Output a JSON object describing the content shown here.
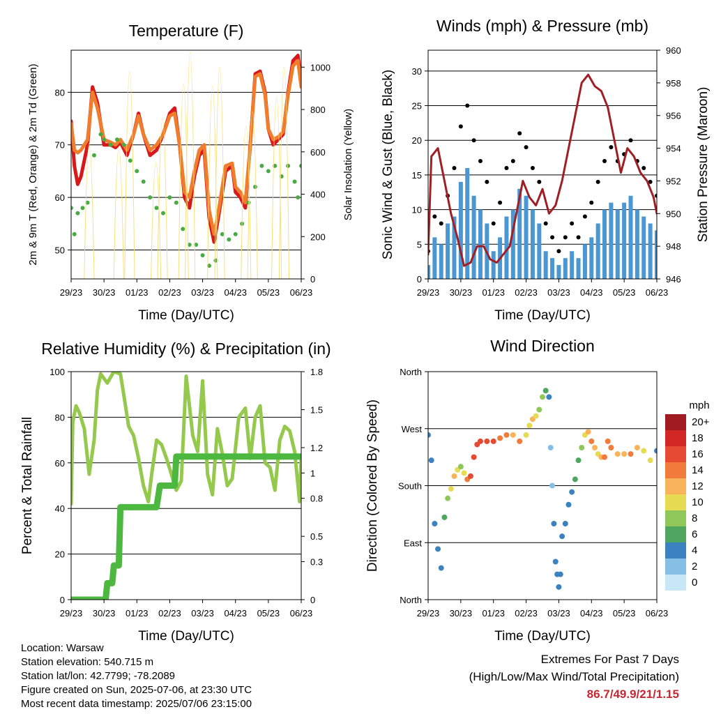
{
  "chart_data": [
    {
      "id": "temperature",
      "type": "line",
      "title": "Temperature (F)",
      "xlabel": "Time (Day/UTC)",
      "ylabel_left": "2m & 9m T (Red, Orange) & 2m Td (Green)",
      "ylabel_right": "Solar Insolation (Yellow)",
      "x_ticks": [
        "29/23",
        "30/23",
        "01/23",
        "02/23",
        "03/23",
        "04/23",
        "05/23",
        "06/23"
      ],
      "xlim": [
        0,
        7
      ],
      "ylim_left": [
        44.5,
        88
      ],
      "yticks_left": [
        50,
        60,
        70,
        80
      ],
      "ylim_right": [
        0,
        1080
      ],
      "yticks_right": [
        0,
        200,
        400,
        600,
        800,
        1000
      ],
      "series": [
        {
          "name": "2m T",
          "color": "#d7191c",
          "axis": "left",
          "kind": "line",
          "x": [
            0,
            0.1,
            0.2,
            0.3,
            0.5,
            0.65,
            0.8,
            1,
            1.2,
            1.35,
            1.5,
            1.7,
            1.9,
            2.05,
            2.2,
            2.4,
            2.6,
            2.8,
            3,
            3.15,
            3.3,
            3.45,
            3.6,
            3.75,
            3.9,
            4.05,
            4.2,
            4.35,
            4.5,
            4.7,
            4.9,
            5,
            5.15,
            5.3,
            5.45,
            5.6,
            5.75,
            5.9,
            6,
            6.15,
            6.3,
            6.45,
            6.6,
            6.75,
            6.9,
            7
          ],
          "y": [
            74.5,
            66,
            62.5,
            64,
            70,
            81,
            78,
            70,
            70,
            69.5,
            70.5,
            68,
            72,
            76,
            72,
            68,
            69,
            72,
            76,
            77,
            70,
            60,
            58,
            64,
            68,
            69,
            56,
            51.5,
            57,
            65,
            66,
            61,
            60,
            58,
            70,
            83.5,
            84,
            80,
            73,
            70,
            71,
            72,
            80,
            86,
            87,
            82
          ]
        },
        {
          "name": "9m T",
          "color": "#f07d2c",
          "axis": "left",
          "kind": "line",
          "x": [
            0,
            0.1,
            0.2,
            0.3,
            0.5,
            0.65,
            0.8,
            1,
            1.2,
            1.35,
            1.5,
            1.7,
            1.9,
            2.05,
            2.2,
            2.4,
            2.6,
            2.8,
            3,
            3.15,
            3.3,
            3.45,
            3.6,
            3.75,
            3.9,
            4.05,
            4.2,
            4.35,
            4.5,
            4.7,
            4.9,
            5,
            5.15,
            5.3,
            5.45,
            5.6,
            5.75,
            5.9,
            6,
            6.15,
            6.3,
            6.45,
            6.6,
            6.75,
            6.9,
            7
          ],
          "y": [
            74,
            69,
            68.5,
            69,
            71,
            80,
            77,
            71,
            70.5,
            70,
            71,
            69,
            72,
            75.5,
            72,
            69,
            70,
            72,
            75.5,
            76,
            70,
            61,
            60,
            65,
            69,
            70,
            57.5,
            53,
            58,
            66,
            66.5,
            62,
            61,
            59,
            70,
            83,
            83.5,
            79.5,
            73,
            71,
            71.5,
            72.5,
            79.5,
            85,
            86,
            81
          ]
        },
        {
          "name": "2m Td",
          "color": "#4aab45",
          "axis": "left",
          "kind": "dots",
          "x": [
            0,
            0.1,
            0.2,
            0.35,
            0.5,
            0.7,
            0.9,
            1,
            1.2,
            1.4,
            1.6,
            1.8,
            2,
            2.2,
            2.4,
            2.6,
            2.8,
            3,
            3.2,
            3.4,
            3.6,
            3.8,
            4,
            4.2,
            4.4,
            4.6,
            4.8,
            5,
            5.2,
            5.4,
            5.6,
            5.8,
            6,
            6.2,
            6.4,
            6.6,
            6.8,
            6.9,
            7
          ],
          "y": [
            58,
            53,
            57,
            58,
            59,
            68,
            72,
            71,
            70,
            71,
            70,
            67,
            65,
            63,
            60,
            58,
            57,
            60,
            59,
            54,
            51,
            51,
            49,
            47,
            48,
            53,
            52,
            53,
            55,
            59,
            62,
            66,
            65,
            66,
            64,
            66,
            63,
            60,
            66
          ]
        },
        {
          "name": "Solar Insolation",
          "color": "#f5e07a",
          "axis": "right",
          "kind": "spikes",
          "x": [
            0.55,
            1.45,
            1.78,
            2.58,
            2.78,
            3.42,
            3.62,
            4.3,
            4.52,
            5.32,
            5.52,
            6.25,
            6.48
          ],
          "y": [
            640,
            620,
            980,
            550,
            760,
            920,
            1070,
            910,
            1000,
            720,
            790,
            860,
            1000
          ]
        }
      ]
    },
    {
      "id": "winds",
      "type": "scatter",
      "title": "Winds (mph) & Pressure (mb)",
      "xlabel": "Time (Day/UTC)",
      "ylabel_left": "Sonic Wind & Gust (Blue, Black)",
      "ylabel_right": "Station Pressure (Maroon)",
      "x_ticks": [
        "29/23",
        "30/23",
        "01/23",
        "02/23",
        "03/23",
        "04/23",
        "05/23",
        "06/23"
      ],
      "xlim": [
        0,
        7
      ],
      "ylim_left": [
        0,
        33
      ],
      "yticks_left": [
        0,
        5,
        10,
        15,
        20,
        25,
        30
      ],
      "ylim_right": [
        946,
        960
      ],
      "yticks_right": [
        946,
        948,
        950,
        952,
        954,
        956,
        958,
        960
      ],
      "series": [
        {
          "name": "Sonic Wind",
          "color": "#4b97d3",
          "axis": "left",
          "kind": "bars",
          "x": [
            0,
            0.2,
            0.4,
            0.6,
            0.8,
            1,
            1.2,
            1.4,
            1.6,
            1.8,
            2,
            2.2,
            2.4,
            2.6,
            2.8,
            3,
            3.2,
            3.4,
            3.6,
            3.8,
            4,
            4.2,
            4.4,
            4.6,
            4.8,
            5,
            5.2,
            5.4,
            5.6,
            5.8,
            6,
            6.2,
            6.4,
            6.6,
            6.8,
            7
          ],
          "y": [
            2,
            6,
            5,
            8,
            9,
            14,
            16,
            12,
            10,
            8,
            4,
            6,
            9,
            10,
            13,
            12,
            10,
            8,
            4,
            3,
            2,
            3,
            4,
            3,
            5,
            6,
            8,
            10,
            11,
            10,
            11,
            12,
            10,
            9,
            8,
            7
          ]
        },
        {
          "name": "Gust",
          "color": "#000000",
          "axis": "left",
          "kind": "dots",
          "x": [
            0,
            0.2,
            0.4,
            0.6,
            0.8,
            1,
            1.2,
            1.4,
            1.6,
            1.8,
            2,
            2.2,
            2.4,
            2.6,
            2.8,
            3,
            3.2,
            3.4,
            3.6,
            3.8,
            4,
            4.2,
            4.4,
            4.6,
            4.8,
            5,
            5.2,
            5.4,
            5.6,
            5.8,
            6,
            6.2,
            6.4,
            6.6,
            6.8,
            7
          ],
          "y": [
            4,
            9,
            8,
            12,
            16,
            22,
            25,
            20,
            17,
            14,
            8,
            11,
            16,
            17,
            21,
            19,
            16,
            14,
            8,
            6,
            4,
            6,
            8,
            6,
            9,
            11,
            14,
            17,
            19,
            17,
            18,
            20,
            17,
            16,
            14,
            12
          ]
        },
        {
          "name": "Station Pressure",
          "color": "#a01f24",
          "axis": "right",
          "kind": "line",
          "x": [
            0,
            0.1,
            0.3,
            0.5,
            0.7,
            0.9,
            1.1,
            1.3,
            1.5,
            1.7,
            1.9,
            2.1,
            2.3,
            2.5,
            2.7,
            2.9,
            3.1,
            3.3,
            3.5,
            3.7,
            3.9,
            4.1,
            4.3,
            4.5,
            4.7,
            4.9,
            5.1,
            5.3,
            5.5,
            5.7,
            5.9,
            6.1,
            6.3,
            6.5,
            6.7,
            6.9,
            7
          ],
          "y": [
            947.5,
            953.5,
            954,
            952,
            950,
            948.5,
            946.8,
            947,
            948,
            948,
            947.2,
            947,
            947.5,
            948,
            950,
            952,
            951,
            950.5,
            951.5,
            950,
            950.5,
            952,
            954,
            956,
            958,
            958.5,
            957.8,
            957.5,
            956.5,
            954.5,
            952.5,
            954,
            953.5,
            952.5,
            952,
            951,
            950
          ]
        }
      ]
    },
    {
      "id": "humidity",
      "type": "line",
      "title": "Relative Humidity (%) & Precipitation (in)",
      "xlabel": "Time (Day/UTC)",
      "ylabel_left": "Percent & Total Rainfall",
      "x_ticks": [
        "29/23",
        "30/23",
        "01/23",
        "02/23",
        "03/23",
        "04/23",
        "05/23",
        "06/23"
      ],
      "xlim": [
        0,
        7
      ],
      "ylim_left": [
        0,
        100
      ],
      "yticks_left": [
        0,
        20,
        40,
        60,
        80,
        100
      ],
      "ylim_right": [
        0,
        1.8
      ],
      "yticks_right": [
        0.0,
        0.3,
        0.5,
        0.8,
        1.0,
        1.2,
        1.5,
        1.8
      ],
      "series": [
        {
          "name": "Relative Humidity",
          "color": "#95c94e",
          "axis": "left",
          "kind": "line",
          "x": [
            0,
            0.05,
            0.15,
            0.25,
            0.4,
            0.55,
            0.7,
            0.8,
            0.9,
            1,
            1.1,
            1.3,
            1.5,
            1.6,
            1.75,
            1.9,
            2.05,
            2.2,
            2.35,
            2.45,
            2.6,
            2.75,
            2.9,
            3.05,
            3.2,
            3.35,
            3.5,
            3.7,
            3.85,
            4,
            4.15,
            4.3,
            4.45,
            4.6,
            4.75,
            4.9,
            5.1,
            5.3,
            5.45,
            5.6,
            5.75,
            5.9,
            6.05,
            6.2,
            6.35,
            6.5,
            6.65,
            6.8,
            6.95,
            7
          ],
          "y": [
            42,
            78,
            85,
            82,
            75,
            55,
            70,
            92,
            99,
            97,
            95,
            100,
            99,
            90,
            76,
            72,
            62,
            50,
            43,
            55,
            70,
            68,
            62,
            55,
            48,
            52,
            98,
            72,
            65,
            96,
            55,
            46,
            75,
            64,
            50,
            53,
            80,
            84,
            62,
            80,
            85,
            60,
            58,
            48,
            70,
            76,
            74,
            65,
            43,
            63
          ]
        },
        {
          "name": "Total Rainfall",
          "color": "#4cb83f",
          "axis": "right",
          "kind": "step",
          "x": [
            0,
            1.05,
            1.1,
            1.25,
            1.3,
            1.45,
            1.5,
            2.6,
            2.7,
            3.15,
            3.2,
            7
          ],
          "y": [
            0,
            0,
            0.13,
            0.13,
            0.27,
            0.27,
            0.73,
            0.73,
            0.9,
            0.9,
            1.13,
            1.13
          ]
        }
      ]
    },
    {
      "id": "wind_direction",
      "type": "scatter",
      "title": "Wind Direction",
      "xlabel": "Time (Day/UTC)",
      "ylabel_left": "Direction (Colored By Speed)",
      "x_ticks": [
        "29/23",
        "30/23",
        "01/23",
        "02/23",
        "03/23",
        "04/23",
        "05/23",
        "06/23"
      ],
      "xlim": [
        0,
        7
      ],
      "ylim_left": [
        0,
        360
      ],
      "yticks_left": [
        "North",
        "East",
        "South",
        "West",
        "North"
      ],
      "legend_title": "mph",
      "legend_labels": [
        "20+",
        "18",
        "16",
        "14",
        "12",
        "10",
        "8",
        "6",
        "4",
        "2",
        "0"
      ],
      "legend_colors": [
        "#a01a22",
        "#d12826",
        "#e64a33",
        "#f07b3a",
        "#f9b35a",
        "#e6dc54",
        "#8fc75a",
        "#4ea661",
        "#3b82c1",
        "#86bfe6",
        "#c7e7f7"
      ],
      "legend_placement": "right",
      "series": [
        {
          "name": "Direction",
          "kind": "dots",
          "x": [
            0,
            0.1,
            0.2,
            0.3,
            0.4,
            0.5,
            0.6,
            0.7,
            0.8,
            0.9,
            1,
            1.1,
            1.2,
            1.3,
            1.4,
            1.5,
            1.6,
            1.8,
            2,
            2.2,
            2.4,
            2.6,
            2.8,
            3,
            3.1,
            3.2,
            3.3,
            3.4,
            3.5,
            3.6,
            3.7,
            3.75,
            3.8,
            3.85,
            3.9,
            3.95,
            4,
            4.05,
            4.1,
            4.2,
            4.3,
            4.4,
            4.5,
            4.6,
            4.7,
            4.8,
            4.9,
            5,
            5.1,
            5.2,
            5.3,
            5.4,
            5.5,
            5.6,
            5.8,
            6,
            6.2,
            6.4,
            6.6,
            6.8,
            7
          ],
          "y": [
            260,
            220,
            120,
            80,
            50,
            130,
            160,
            175,
            195,
            205,
            210,
            200,
            190,
            195,
            225,
            245,
            250,
            250,
            250,
            255,
            260,
            260,
            250,
            260,
            275,
            285,
            290,
            300,
            320,
            330,
            320,
            240,
            180,
            120,
            60,
            40,
            20,
            40,
            100,
            120,
            150,
            170,
            190,
            220,
            240,
            260,
            265,
            250,
            240,
            230,
            225,
            225,
            250,
            240,
            230,
            230,
            230,
            240,
            235,
            220,
            235
          ],
          "speed": [
            3,
            3,
            3,
            4,
            4,
            6,
            8,
            10,
            12,
            10,
            8,
            10,
            14,
            15,
            16,
            16,
            15,
            16,
            16,
            14,
            14,
            12,
            14,
            10,
            10,
            12,
            10,
            8,
            8,
            6,
            4,
            2,
            2,
            3,
            3,
            4,
            4,
            3,
            3,
            3,
            4,
            4,
            5,
            6,
            8,
            10,
            12,
            14,
            12,
            10,
            12,
            14,
            14,
            14,
            12,
            12,
            14,
            12,
            10,
            10,
            4
          ]
        }
      ]
    }
  ],
  "info": {
    "location": "Location: Warsaw",
    "elevation": "Station elevation: 540.715 m",
    "latlon": "Station lat/lon: 42.7799; -78.2089",
    "created": "Figure created on Sun, 2025-07-06, at 23:30 UTC",
    "recent": "Most recent data timestamp: 2025/07/06 23:15:00"
  },
  "extremes": {
    "title": "Extremes For Past 7 Days",
    "subtitle": "(High/Low/Max Wind/Total Precipitation)",
    "values": "86.7/49.9/21/1.15",
    "value_color": "#c62832"
  }
}
